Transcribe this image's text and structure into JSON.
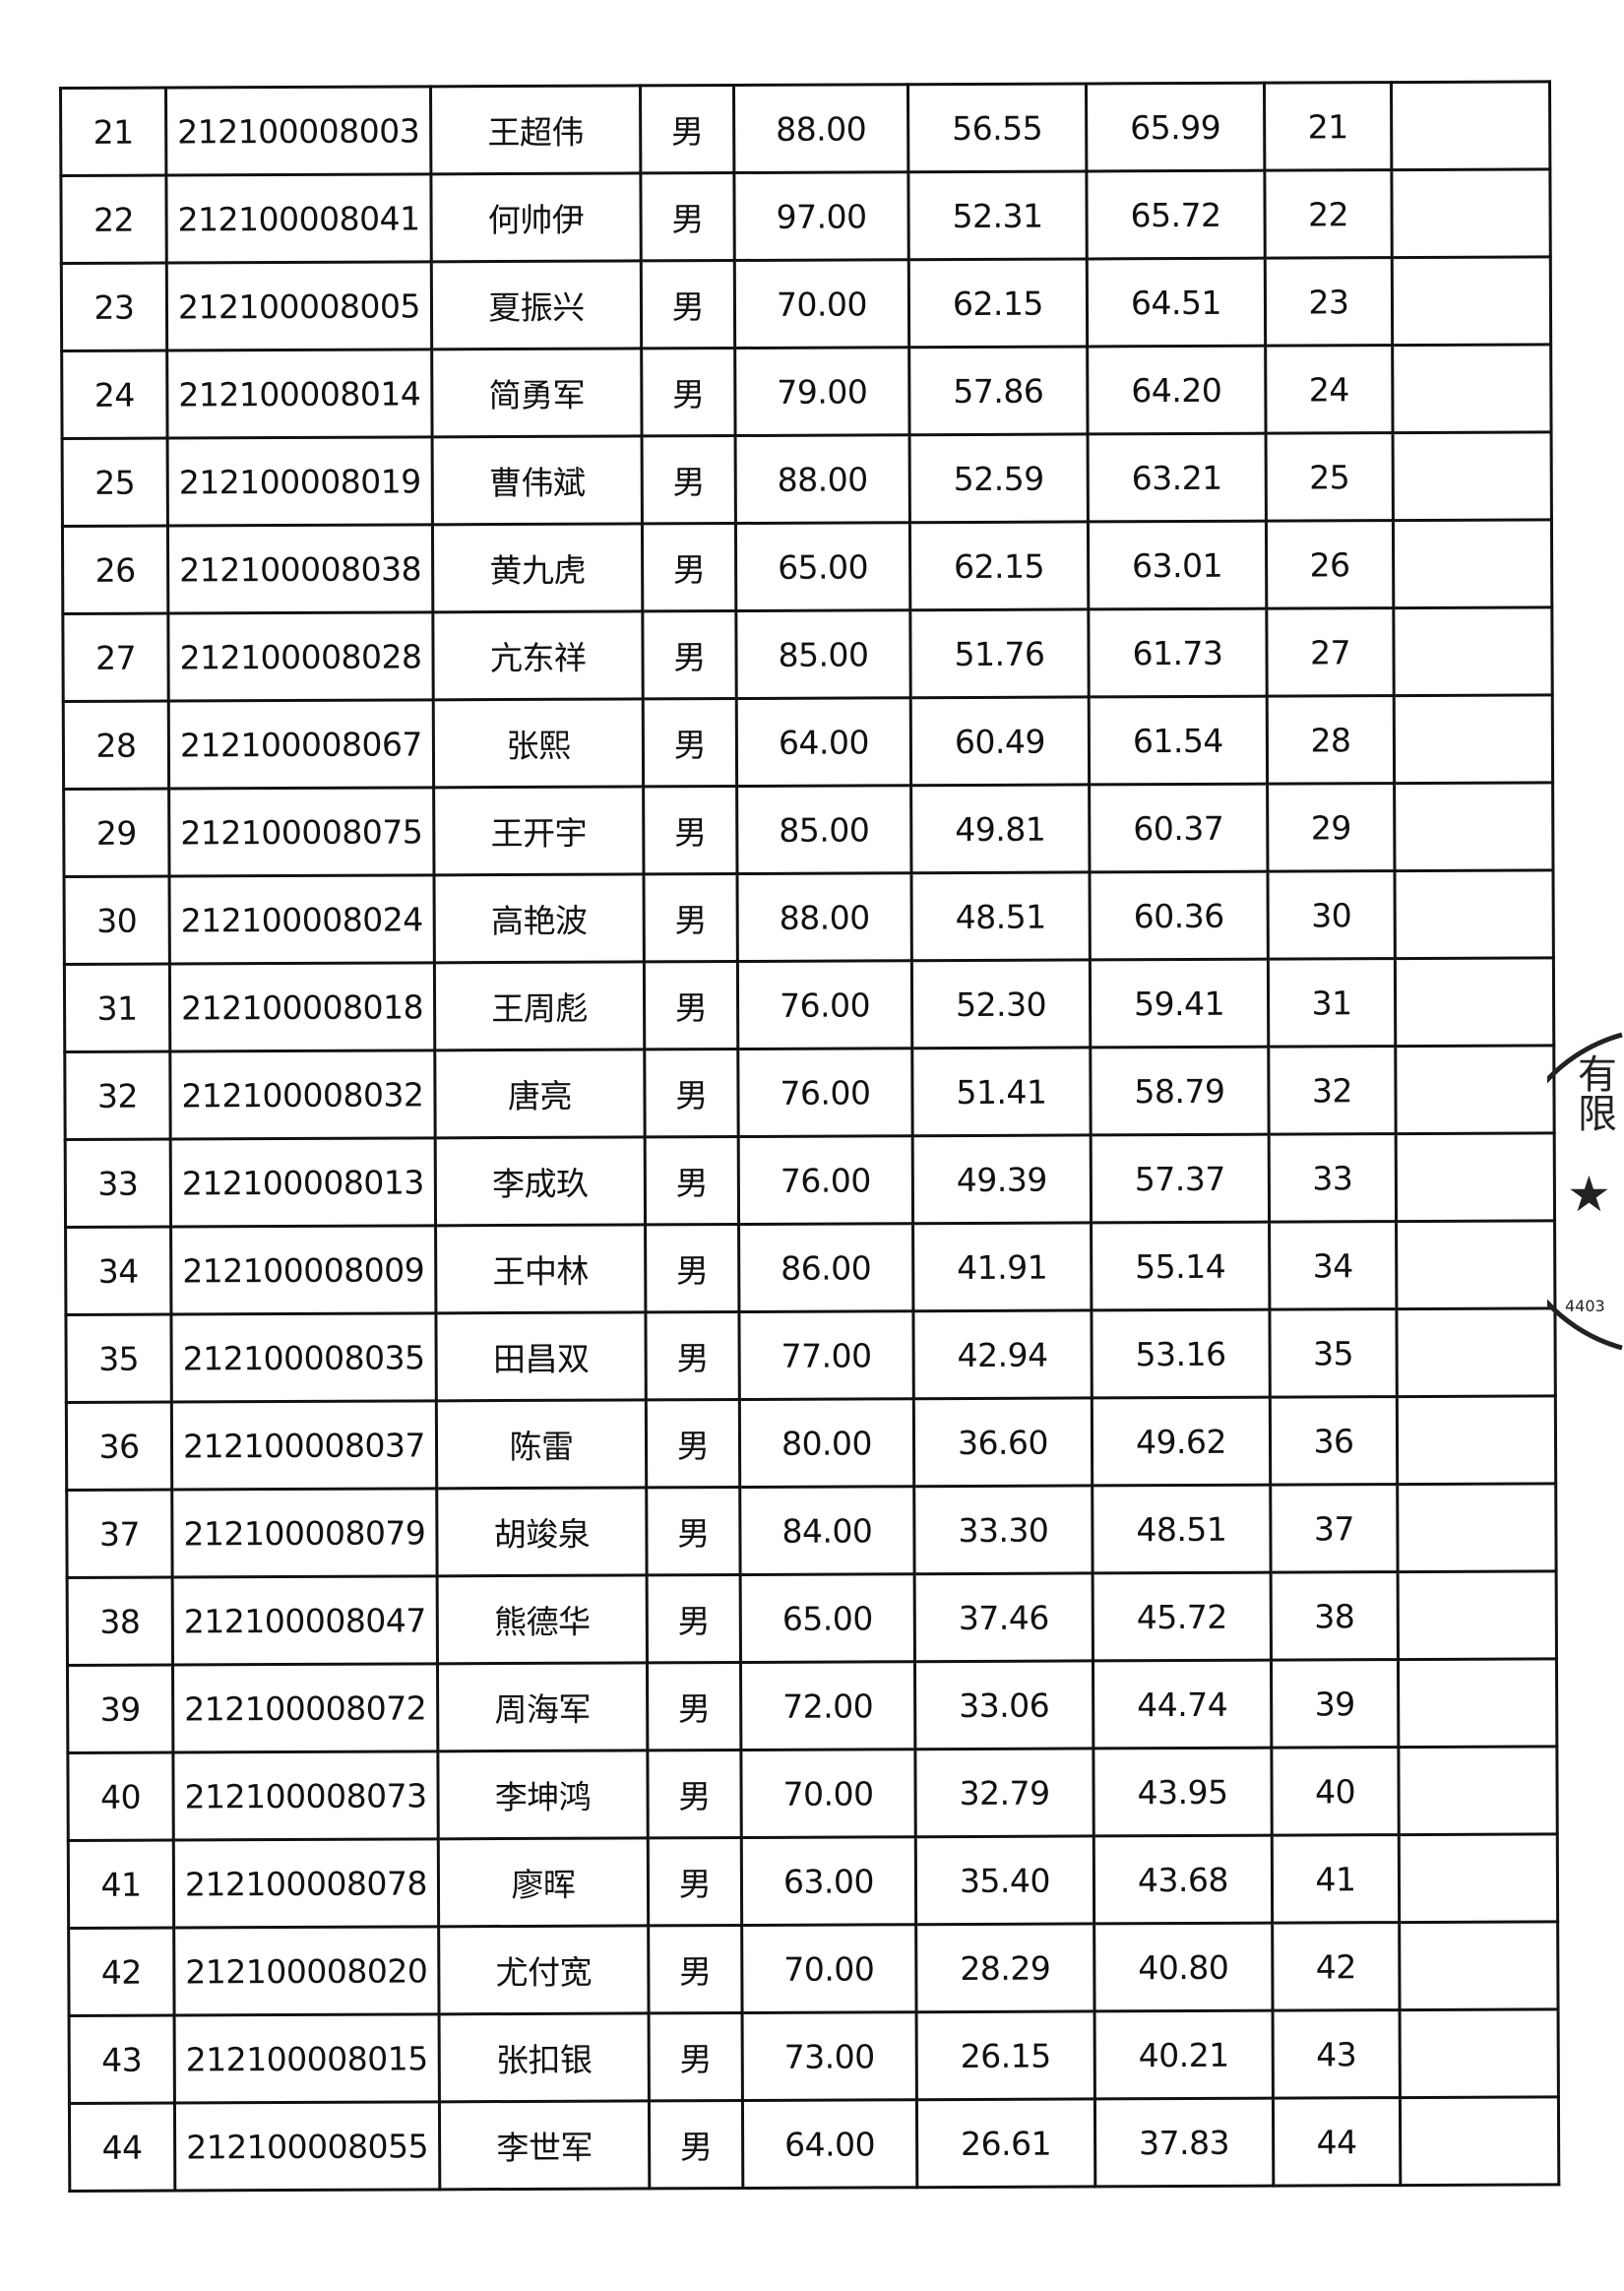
{
  "rows": [
    [
      "21",
      "212100008003",
      "王超伟",
      "男",
      "88.00",
      "56.55",
      "65.99",
      "21",
      ""
    ],
    [
      "22",
      "212100008041",
      "何帅伊",
      "男",
      "97.00",
      "52.31",
      "65.72",
      "22",
      ""
    ],
    [
      "23",
      "212100008005",
      "夏振兴",
      "男",
      "70.00",
      "62.15",
      "64.51",
      "23",
      ""
    ],
    [
      "24",
      "212100008014",
      "简勇军",
      "男",
      "79.00",
      "57.86",
      "64.20",
      "24",
      ""
    ],
    [
      "25",
      "212100008019",
      "曹伟斌",
      "男",
      "88.00",
      "52.59",
      "63.21",
      "25",
      ""
    ],
    [
      "26",
      "212100008038",
      "黄九虎",
      "男",
      "65.00",
      "62.15",
      "63.01",
      "26",
      ""
    ],
    [
      "27",
      "212100008028",
      "亢东祥",
      "男",
      "85.00",
      "51.76",
      "61.73",
      "27",
      ""
    ],
    [
      "28",
      "212100008067",
      "张熙",
      "男",
      "64.00",
      "60.49",
      "61.54",
      "28",
      ""
    ],
    [
      "29",
      "212100008075",
      "王开宇",
      "男",
      "85.00",
      "49.81",
      "60.37",
      "29",
      ""
    ],
    [
      "30",
      "212100008024",
      "高艳波",
      "男",
      "88.00",
      "48.51",
      "60.36",
      "30",
      ""
    ],
    [
      "31",
      "212100008018",
      "王周彪",
      "男",
      "76.00",
      "52.30",
      "59.41",
      "31",
      ""
    ],
    [
      "32",
      "212100008032",
      "唐亮",
      "男",
      "76.00",
      "51.41",
      "58.79",
      "32",
      ""
    ],
    [
      "33",
      "212100008013",
      "李成玖",
      "男",
      "76.00",
      "49.39",
      "57.37",
      "33",
      ""
    ],
    [
      "34",
      "212100008009",
      "王中林",
      "男",
      "86.00",
      "41.91",
      "55.14",
      "34",
      ""
    ],
    [
      "35",
      "212100008035",
      "田昌双",
      "男",
      "77.00",
      "42.94",
      "53.16",
      "35",
      ""
    ],
    [
      "36",
      "212100008037",
      "陈雷",
      "男",
      "80.00",
      "36.60",
      "49.62",
      "36",
      ""
    ],
    [
      "37",
      "212100008079",
      "胡竣泉",
      "男",
      "84.00",
      "33.30",
      "48.51",
      "37",
      ""
    ],
    [
      "38",
      "212100008047",
      "熊德华",
      "男",
      "65.00",
      "37.46",
      "45.72",
      "38",
      ""
    ],
    [
      "39",
      "212100008072",
      "周海军",
      "男",
      "72.00",
      "33.06",
      "44.74",
      "39",
      ""
    ],
    [
      "40",
      "212100008073",
      "李坤鸿",
      "男",
      "70.00",
      "32.79",
      "43.95",
      "40",
      ""
    ],
    [
      "41",
      "212100008078",
      "廖晖",
      "男",
      "63.00",
      "35.40",
      "43.68",
      "41",
      ""
    ],
    [
      "42",
      "212100008020",
      "尤付宽",
      "男",
      "70.00",
      "28.29",
      "40.80",
      "42",
      ""
    ],
    [
      "43",
      "212100008015",
      "张扣银",
      "男",
      "73.00",
      "26.15",
      "40.21",
      "43",
      ""
    ],
    [
      "44",
      "212100008055",
      "李世军",
      "男",
      "64.00",
      "26.61",
      "37.83",
      "44",
      ""
    ]
  ],
  "stamp": {
    "text": "有限",
    "number": "4403",
    "icon": "star-icon"
  }
}
